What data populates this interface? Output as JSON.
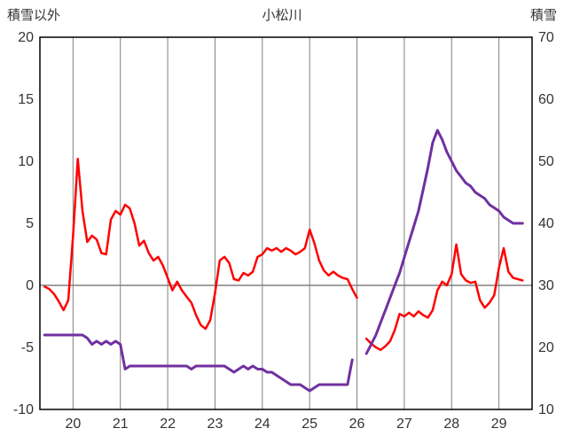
{
  "chart_data": {
    "type": "line",
    "title": "小松川",
    "left_axis_label": "積雪以外",
    "right_axis_label": "積雪",
    "xlim": [
      19.3,
      29.7
    ],
    "xticks": [
      20,
      21,
      22,
      23,
      24,
      25,
      26,
      27,
      28,
      29
    ],
    "left_ylim": [
      -10,
      20
    ],
    "left_yticks": [
      20,
      15,
      10,
      5,
      0,
      -5,
      -10
    ],
    "right_ylim": [
      10,
      70
    ],
    "right_yticks": [
      70,
      60,
      50,
      40,
      30,
      20,
      10
    ],
    "zero_line": 0,
    "grid": "vertical-on",
    "legend": "none",
    "colors": {
      "red_series": "#ff0000",
      "purple_series": "#7030a0",
      "gridline": "#808080",
      "frame": "#000000",
      "text": "#333333"
    },
    "x_start": 19.4,
    "x_step": 0.1,
    "series": [
      {
        "name": "積雪以外",
        "axis": "left",
        "color": "#ff0000",
        "values": [
          -0.1,
          -0.3,
          -0.7,
          -1.3,
          -2.0,
          -1.2,
          4.0,
          10.2,
          6.0,
          3.5,
          4.0,
          3.7,
          2.6,
          2.5,
          5.3,
          6.0,
          5.7,
          6.5,
          6.2,
          5.0,
          3.2,
          3.6,
          2.6,
          2.0,
          2.3,
          1.6,
          0.6,
          -0.4,
          0.3,
          -0.4,
          -0.9,
          -1.4,
          -2.4,
          -3.2,
          -3.5,
          -2.8,
          -0.6,
          2.0,
          2.3,
          1.8,
          0.5,
          0.4,
          1.0,
          0.8,
          1.1,
          2.3,
          2.5,
          3.0,
          2.8,
          3.0,
          2.7,
          3.0,
          2.8,
          2.5,
          2.7,
          3.0,
          4.5,
          3.4,
          2.0,
          1.2,
          0.8,
          1.1,
          0.8,
          0.6,
          0.5,
          -0.3,
          -1.0,
          null,
          -4.3,
          -4.7,
          -5.0,
          -5.2,
          -4.9,
          -4.5,
          -3.6,
          -2.3,
          -2.5,
          -2.2,
          -2.5,
          -2.1,
          -2.4,
          -2.6,
          -2.0,
          -0.4,
          0.3,
          0.0,
          0.9,
          3.3,
          0.9,
          0.4,
          0.2,
          0.3,
          -1.2,
          -1.8,
          -1.4,
          -0.8,
          1.4,
          3.0,
          1.1,
          0.6,
          0.5,
          0.4
        ]
      },
      {
        "name": "積雪",
        "axis": "right",
        "color": "#7030a0",
        "values": [
          22,
          22,
          22,
          22,
          22,
          22,
          22,
          22,
          22,
          21.5,
          20.5,
          21,
          20.5,
          21,
          20.5,
          21,
          20.5,
          16.5,
          17,
          17,
          17,
          17,
          17,
          17,
          17,
          17,
          17,
          17,
          17,
          17,
          17,
          16.5,
          17,
          17,
          17,
          17,
          17,
          17,
          17,
          16.5,
          16,
          16.5,
          17,
          16.5,
          17,
          16.5,
          16.5,
          16,
          16,
          15.5,
          15,
          14.5,
          14,
          14,
          14,
          13.5,
          13,
          13.5,
          14,
          14,
          14,
          14,
          14,
          14,
          14,
          18,
          null,
          null,
          19,
          20.5,
          22,
          24,
          26,
          28,
          30,
          32,
          34.5,
          37,
          39.5,
          42,
          45.5,
          49,
          53,
          55,
          53.5,
          51.5,
          50,
          48.5,
          47.5,
          46.5,
          46,
          45,
          44.5,
          44,
          43,
          42.5,
          42,
          41,
          40.5,
          40,
          40,
          40
        ]
      }
    ]
  }
}
